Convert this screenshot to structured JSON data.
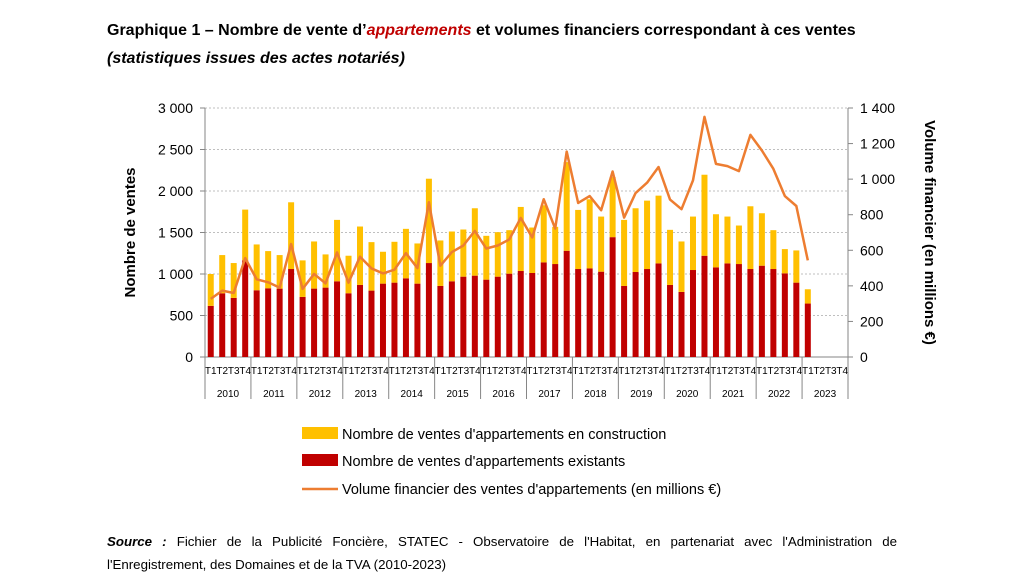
{
  "title": {
    "prefix": "Graphique 1 – Nombre de vente d’",
    "highlight": "appartements",
    "suffix": " et volumes financiers correspondant à ces ventes"
  },
  "subtitle": "(statistiques issues des actes notariés)",
  "source": {
    "label": "Source :",
    "text": " Fichier de la Publicité Foncière, STATEC - Observatoire de l'Habitat, en partenariat avec l'Administration de l'Enregistrement, des Domaines et de la TVA (2010-2023)"
  },
  "colors": {
    "construction": "#ffc000",
    "existants": "#c00000",
    "volume": "#ed7d31"
  },
  "chart_data": {
    "type": "bar",
    "ylabel": "Nombre de ventes",
    "y2label": "Volume financier (en millions €)",
    "ylim": [
      0,
      3000
    ],
    "y2lim": [
      0,
      1400
    ],
    "yticks": [
      "0",
      "500",
      "1 000",
      "1 500",
      "2 000",
      "2 500",
      "3 000"
    ],
    "y2ticks": [
      "0",
      "200",
      "400",
      "600",
      "800",
      "1 000",
      "1 200",
      "1 400"
    ],
    "years": [
      "2010",
      "2011",
      "2012",
      "2013",
      "2014",
      "2015",
      "2016",
      "2017",
      "2018",
      "2019",
      "2020",
      "2021",
      "2022",
      "2023"
    ],
    "quarters": [
      "T1",
      "T2",
      "T3",
      "T4"
    ],
    "legend": [
      "Nombre de ventes d'appartements en construction",
      "Nombre de ventes d'appartements existants",
      "Volume financier des ventes d'appartements (en millions €)"
    ],
    "legend_position": "bottom",
    "grid": true,
    "series": [
      {
        "name": "Nombre de ventes d'appartements existants",
        "type": "bar-stacked",
        "axis": "left",
        "values": [
          616,
          768,
          712,
          1164,
          804,
          828,
          824,
          1060,
          724,
          824,
          836,
          912,
          768,
          868,
          800,
          884,
          896,
          948,
          884,
          1132,
          856,
          912,
          968,
          980,
          932,
          968,
          1004,
          1036,
          1012,
          1140,
          1120,
          1280,
          1060,
          1068,
          1028,
          1444,
          856,
          1024,
          1060,
          1128,
          868,
          784,
          1048,
          1220,
          1080,
          1128,
          1120,
          1060,
          1100,
          1060,
          1008,
          896,
          644,
          null,
          null,
          null
        ]
      },
      {
        "name": "Nombre de ventes d'appartements en construction",
        "type": "bar-stacked",
        "axis": "left",
        "values": [
          384,
          460,
          420,
          612,
          552,
          448,
          404,
          804,
          440,
          568,
          400,
          740,
          452,
          704,
          584,
          384,
          492,
          596,
          484,
          1016,
          548,
          600,
          568,
          812,
          528,
          536,
          524,
          772,
          548,
          688,
          448,
          1068,
          712,
          832,
          664,
          724,
          796,
          768,
          824,
          816,
          664,
          608,
          644,
          976,
          640,
          564,
          464,
          756,
          632,
          468,
          292,
          388,
          172,
          null,
          null,
          null
        ]
      },
      {
        "name": "Volume financier des ventes d'appartements (en millions €)",
        "type": "line",
        "axis": "right",
        "values": [
          327,
          373,
          360,
          556,
          437,
          420,
          390,
          635,
          383,
          467,
          414,
          588,
          418,
          564,
          498,
          470,
          491,
          584,
          500,
          870,
          513,
          590,
          627,
          709,
          610,
          627,
          661,
          782,
          672,
          887,
          722,
          1155,
          866,
          905,
          825,
          1043,
          784,
          922,
          980,
          1068,
          885,
          831,
          993,
          1350,
          1086,
          1073,
          1045,
          1249,
          1161,
          1058,
          905,
          849,
          543,
          null,
          null,
          null
        ]
      }
    ]
  }
}
